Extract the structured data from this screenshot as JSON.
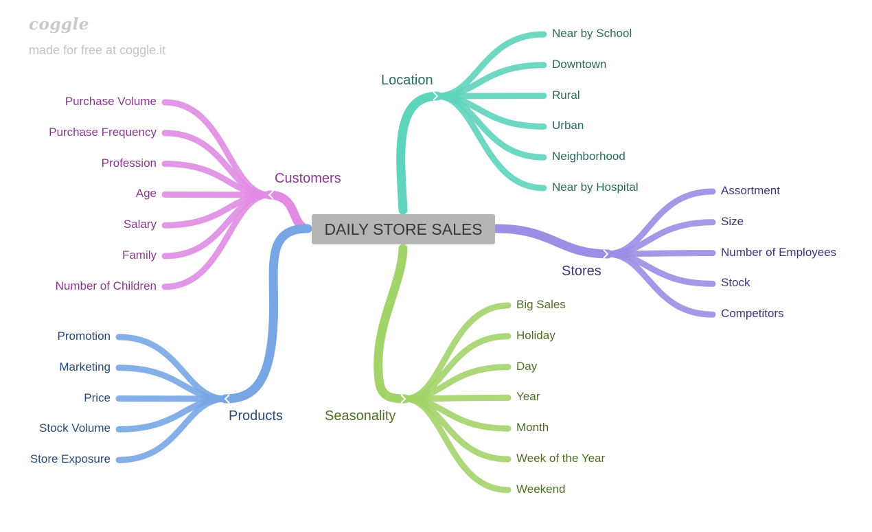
{
  "brand": {
    "logo": "coggle",
    "tagline": "made for free at coggle.it"
  },
  "root": {
    "label": "DAILY STORE SALES"
  },
  "branches": [
    {
      "key": "location",
      "label": "Location",
      "color": "#5ed4bd",
      "text_color": "#2a6b5e",
      "children": [
        "Near by School",
        "Downtown",
        "Rural",
        "Urban",
        "Neighborhood",
        "Near by Hospital"
      ]
    },
    {
      "key": "customers",
      "label": "Customers",
      "color": "#e08ce4",
      "text_color": "#8a3a8e",
      "children": [
        "Purchase Volume",
        "Purchase Frequency",
        "Profession",
        "Age",
        "Salary",
        "Family",
        "Number of Children"
      ]
    },
    {
      "key": "stores",
      "label": "Stores",
      "color": "#9b8ee4",
      "text_color": "#3e3480",
      "children": [
        "Assortment",
        "Size",
        "Number of Employees",
        "Stock",
        "Competitors"
      ]
    },
    {
      "key": "products",
      "label": "Products",
      "color": "#78a6e4",
      "text_color": "#2a4a7a",
      "children": [
        "Promotion",
        "Marketing",
        "Price",
        "Stock Volume",
        "Store Exposure"
      ]
    },
    {
      "key": "seasonality",
      "label": "Seasonality",
      "color": "#a3d46a",
      "text_color": "#4e6e22",
      "children": [
        "Big Sales",
        "Holiday",
        "Day",
        "Year",
        "Month",
        "Week of the Year",
        "Weekend"
      ]
    }
  ]
}
